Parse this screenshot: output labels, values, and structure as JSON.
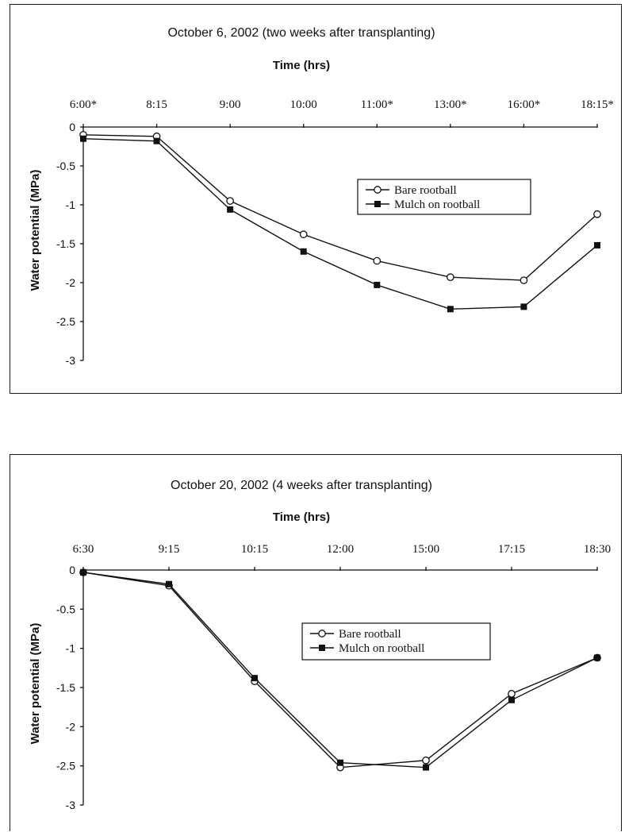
{
  "chart_data": [
    {
      "type": "line",
      "title": "October 6, 2002 (two weeks after transplanting)",
      "xlabel": "Time (hrs)",
      "ylabel": "Water potential (MPa)",
      "categories": [
        "6:00*",
        "8:15",
        "9:00",
        "10:00",
        "11:00*",
        "13:00*",
        "16:00*",
        "18:15*"
      ],
      "ylim": [
        -3,
        0
      ],
      "yticks": [
        "0",
        "-0.5",
        "-1",
        "-1.5",
        "-2",
        "-2.5",
        "-3"
      ],
      "ytick_values": [
        0,
        -0.5,
        -1,
        -1.5,
        -2,
        -2.5,
        -3
      ],
      "grid": false,
      "legend_position": "center-right",
      "series": [
        {
          "name": "Bare rootball",
          "marker": "open-circle",
          "values": [
            -0.1,
            -0.12,
            -0.95,
            -1.38,
            -1.72,
            -1.93,
            -1.97,
            -1.12
          ]
        },
        {
          "name": "Mulch on rootball",
          "marker": "filled-square",
          "values": [
            -0.15,
            -0.18,
            -1.06,
            -1.6,
            -2.03,
            -2.34,
            -2.31,
            -1.52
          ]
        }
      ]
    },
    {
      "type": "line",
      "title": "October 20, 2002 (4 weeks after transplanting)",
      "xlabel": "Time (hrs)",
      "ylabel": "Water potential (MPa)",
      "categories": [
        "6:30",
        "9:15",
        "10:15",
        "12:00",
        "15:00",
        "17:15",
        "18:30"
      ],
      "ylim": [
        -3,
        0
      ],
      "yticks": [
        "0",
        "-0.5",
        "-1",
        "-1.5",
        "-2",
        "-2.5",
        "-3"
      ],
      "ytick_values": [
        0,
        -0.5,
        -1,
        -1.5,
        -2,
        -2.5,
        -3
      ],
      "grid": false,
      "legend_position": "center",
      "series": [
        {
          "name": "Bare rootball",
          "marker": "open-circle",
          "values": [
            -0.03,
            -0.2,
            -1.42,
            -2.52,
            -2.43,
            -1.58,
            -1.12
          ]
        },
        {
          "name": "Mulch on rootball",
          "marker": "filled-square",
          "values": [
            -0.03,
            -0.18,
            -1.38,
            -2.46,
            -2.52,
            -1.66,
            -1.12
          ]
        }
      ]
    }
  ]
}
